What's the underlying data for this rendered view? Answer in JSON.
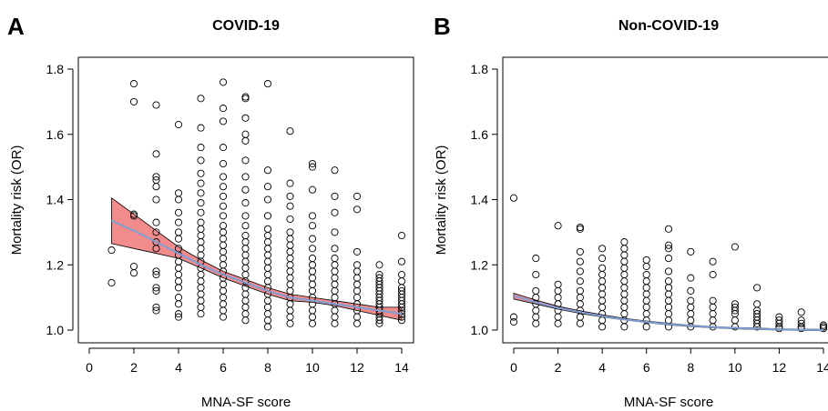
{
  "chart_data": [
    {
      "panel_letter": "A",
      "type": "scatter",
      "title": "COVID-19",
      "xlabel": "MNA-SF score",
      "ylabel": "Mortality risk (OR)",
      "xlim": [
        0,
        14
      ],
      "ylim": [
        1.0,
        1.8
      ],
      "xticks": [
        "0",
        "2",
        "4",
        "6",
        "8",
        "10",
        "12",
        "14"
      ],
      "yticks": [
        "1.0",
        "1.2",
        "1.4",
        "1.6",
        "1.8"
      ],
      "grid": false,
      "legend": "none",
      "points_by_score": [
        {
          "x": 1,
          "y": [
            1.145,
            1.245
          ]
        },
        {
          "x": 2,
          "y": [
            1.175,
            1.195,
            1.35,
            1.355,
            1.7,
            1.755
          ]
        },
        {
          "x": 3,
          "y": [
            1.06,
            1.07,
            1.12,
            1.13,
            1.17,
            1.18,
            1.25,
            1.27,
            1.3,
            1.33,
            1.4,
            1.44,
            1.46,
            1.47,
            1.54,
            1.69
          ]
        },
        {
          "x": 4,
          "y": [
            1.04,
            1.05,
            1.08,
            1.1,
            1.13,
            1.15,
            1.17,
            1.19,
            1.21,
            1.23,
            1.25,
            1.28,
            1.3,
            1.33,
            1.36,
            1.4,
            1.42,
            1.63
          ]
        },
        {
          "x": 5,
          "y": [
            1.05,
            1.07,
            1.09,
            1.11,
            1.13,
            1.15,
            1.17,
            1.19,
            1.21,
            1.23,
            1.25,
            1.27,
            1.29,
            1.31,
            1.33,
            1.36,
            1.39,
            1.42,
            1.45,
            1.48,
            1.52,
            1.56,
            1.62,
            1.71
          ]
        },
        {
          "x": 6,
          "y": [
            1.04,
            1.06,
            1.08,
            1.1,
            1.12,
            1.14,
            1.16,
            1.18,
            1.2,
            1.22,
            1.24,
            1.26,
            1.28,
            1.3,
            1.32,
            1.35,
            1.38,
            1.41,
            1.44,
            1.47,
            1.51,
            1.56,
            1.64,
            1.68,
            1.76
          ]
        },
        {
          "x": 7,
          "y": [
            1.03,
            1.05,
            1.07,
            1.09,
            1.11,
            1.13,
            1.15,
            1.17,
            1.19,
            1.21,
            1.23,
            1.25,
            1.27,
            1.29,
            1.32,
            1.35,
            1.39,
            1.43,
            1.47,
            1.52,
            1.58,
            1.6,
            1.65,
            1.71,
            1.715
          ]
        },
        {
          "x": 8,
          "y": [
            1.01,
            1.03,
            1.05,
            1.07,
            1.09,
            1.11,
            1.13,
            1.15,
            1.17,
            1.19,
            1.21,
            1.23,
            1.25,
            1.27,
            1.29,
            1.31,
            1.35,
            1.4,
            1.44,
            1.49,
            1.755
          ]
        },
        {
          "x": 9,
          "y": [
            1.02,
            1.04,
            1.06,
            1.08,
            1.1,
            1.12,
            1.14,
            1.16,
            1.18,
            1.2,
            1.22,
            1.24,
            1.26,
            1.28,
            1.3,
            1.34,
            1.38,
            1.41,
            1.45,
            1.61
          ]
        },
        {
          "x": 10,
          "y": [
            1.02,
            1.04,
            1.06,
            1.08,
            1.1,
            1.12,
            1.14,
            1.16,
            1.18,
            1.2,
            1.22,
            1.25,
            1.28,
            1.32,
            1.35,
            1.43,
            1.5,
            1.51
          ]
        },
        {
          "x": 11,
          "y": [
            1.02,
            1.04,
            1.06,
            1.08,
            1.1,
            1.12,
            1.14,
            1.16,
            1.18,
            1.2,
            1.22,
            1.25,
            1.3,
            1.36,
            1.41,
            1.49
          ]
        },
        {
          "x": 12,
          "y": [
            1.02,
            1.04,
            1.06,
            1.08,
            1.1,
            1.12,
            1.14,
            1.16,
            1.18,
            1.2,
            1.24,
            1.37,
            1.41
          ]
        },
        {
          "x": 13,
          "y": [
            1.02,
            1.03,
            1.04,
            1.05,
            1.06,
            1.07,
            1.08,
            1.09,
            1.1,
            1.11,
            1.12,
            1.13,
            1.14,
            1.15,
            1.16,
            1.17,
            1.2
          ]
        },
        {
          "x": 14,
          "y": [
            1.03,
            1.04,
            1.05,
            1.06,
            1.07,
            1.08,
            1.09,
            1.1,
            1.11,
            1.12,
            1.13,
            1.15,
            1.17,
            1.21,
            1.29
          ]
        }
      ],
      "smooth_line": {
        "color": "#7f9fd6",
        "x": [
          1,
          2,
          3,
          4,
          5,
          6,
          7,
          8,
          9,
          10,
          11,
          12,
          13,
          14
        ],
        "y": [
          1.335,
          1.305,
          1.27,
          1.235,
          1.2,
          1.17,
          1.145,
          1.12,
          1.1,
          1.09,
          1.08,
          1.07,
          1.06,
          1.05
        ]
      },
      "ci_band": {
        "color": "#f28b8b",
        "x": [
          1,
          2,
          3,
          4,
          5,
          6,
          7,
          8,
          9,
          10,
          11,
          12,
          13,
          14
        ],
        "lower": [
          1.265,
          1.25,
          1.235,
          1.22,
          1.19,
          1.16,
          1.135,
          1.11,
          1.09,
          1.085,
          1.075,
          1.06,
          1.045,
          1.03
        ],
        "upper": [
          1.405,
          1.355,
          1.305,
          1.255,
          1.215,
          1.18,
          1.155,
          1.13,
          1.11,
          1.1,
          1.09,
          1.08,
          1.07,
          1.07
        ]
      }
    },
    {
      "panel_letter": "B",
      "type": "scatter",
      "title": "Non-COVID-19",
      "xlabel": "MNA-SF score",
      "ylabel": "Mortality risk (OR)",
      "xlim": [
        0,
        14
      ],
      "ylim": [
        1.0,
        1.8
      ],
      "xticks": [
        "0",
        "2",
        "4",
        "6",
        "8",
        "10",
        "12",
        "14"
      ],
      "yticks": [
        "1.0",
        "1.2",
        "1.4",
        "1.6",
        "1.8"
      ],
      "grid": false,
      "legend": "none",
      "points_by_score": [
        {
          "x": 0,
          "y": [
            1.025,
            1.04,
            1.405
          ]
        },
        {
          "x": 1,
          "y": [
            1.02,
            1.04,
            1.06,
            1.08,
            1.1,
            1.12,
            1.17,
            1.22
          ]
        },
        {
          "x": 2,
          "y": [
            1.02,
            1.04,
            1.06,
            1.08,
            1.1,
            1.12,
            1.14,
            1.32
          ]
        },
        {
          "x": 3,
          "y": [
            1.02,
            1.04,
            1.06,
            1.08,
            1.1,
            1.12,
            1.15,
            1.18,
            1.21,
            1.24,
            1.31,
            1.315
          ]
        },
        {
          "x": 4,
          "y": [
            1.01,
            1.03,
            1.05,
            1.07,
            1.09,
            1.11,
            1.13,
            1.15,
            1.17,
            1.19,
            1.22,
            1.25
          ]
        },
        {
          "x": 5,
          "y": [
            1.01,
            1.03,
            1.05,
            1.07,
            1.09,
            1.11,
            1.13,
            1.15,
            1.17,
            1.19,
            1.21,
            1.23,
            1.25,
            1.27
          ]
        },
        {
          "x": 6,
          "y": [
            1.01,
            1.03,
            1.05,
            1.07,
            1.09,
            1.11,
            1.13,
            1.15,
            1.17,
            1.195,
            1.215
          ]
        },
        {
          "x": 7,
          "y": [
            1.01,
            1.03,
            1.05,
            1.07,
            1.09,
            1.11,
            1.13,
            1.15,
            1.18,
            1.22,
            1.25,
            1.26,
            1.31
          ]
        },
        {
          "x": 8,
          "y": [
            1.01,
            1.03,
            1.05,
            1.07,
            1.09,
            1.12,
            1.16,
            1.24
          ]
        },
        {
          "x": 9,
          "y": [
            1.01,
            1.03,
            1.05,
            1.07,
            1.09,
            1.17,
            1.21
          ]
        },
        {
          "x": 10,
          "y": [
            1.01,
            1.03,
            1.05,
            1.06,
            1.07,
            1.08,
            1.255
          ]
        },
        {
          "x": 11,
          "y": [
            1.01,
            1.02,
            1.03,
            1.04,
            1.05,
            1.06,
            1.08,
            1.13
          ]
        },
        {
          "x": 12,
          "y": [
            1.005,
            1.01,
            1.02,
            1.03,
            1.04
          ]
        },
        {
          "x": 13,
          "y": [
            1.005,
            1.01,
            1.02,
            1.03,
            1.055
          ]
        },
        {
          "x": 14,
          "y": [
            1.005,
            1.01,
            1.015
          ]
        }
      ],
      "smooth_line": {
        "color": "#7f9fd6",
        "x": [
          0,
          1,
          2,
          3,
          4,
          5,
          6,
          7,
          8,
          9,
          10,
          11,
          12,
          13,
          14
        ],
        "y": [
          1.105,
          1.085,
          1.068,
          1.055,
          1.043,
          1.033,
          1.025,
          1.018,
          1.013,
          1.009,
          1.006,
          1.004,
          1.002,
          1.001,
          1.0
        ]
      },
      "ci_band": {
        "color": "#f28b8b",
        "x": [
          0,
          1,
          2,
          3,
          4,
          5,
          6,
          7,
          8,
          9,
          10,
          11,
          12,
          13,
          14
        ],
        "lower": [
          1.095,
          1.08,
          1.064,
          1.051,
          1.04,
          1.031,
          1.023,
          1.016,
          1.011,
          1.007,
          1.004,
          1.002,
          1.0,
          0.999,
          0.998
        ],
        "upper": [
          1.113,
          1.092,
          1.073,
          1.059,
          1.047,
          1.036,
          1.028,
          1.021,
          1.015,
          1.011,
          1.008,
          1.006,
          1.004,
          1.003,
          1.002
        ]
      }
    }
  ]
}
